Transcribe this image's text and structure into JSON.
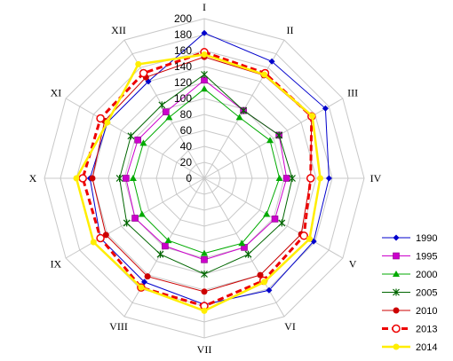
{
  "chart_data": {
    "type": "radar",
    "categories": [
      "I",
      "II",
      "III",
      "IV",
      "V",
      "VI",
      "VII",
      "VIII",
      "IX",
      "X",
      "XI",
      "XII"
    ],
    "rlim": [
      0,
      200
    ],
    "ticks": [
      0,
      20,
      40,
      60,
      80,
      100,
      120,
      140,
      160,
      180,
      200
    ],
    "grid": true,
    "legend_position": "right",
    "series": [
      {
        "name": "1990",
        "color": "#0000cc",
        "marker": "diamond",
        "dashed": false,
        "width": 1,
        "values": [
          182,
          169,
          175,
          156,
          158,
          162,
          158,
          150,
          150,
          143,
          140,
          140
        ]
      },
      {
        "name": "1995",
        "color": "#cc00cc",
        "marker": "square",
        "dashed": false,
        "width": 1,
        "values": [
          123,
          98,
          108,
          103,
          102,
          100,
          102,
          98,
          100,
          98,
          96,
          96
        ]
      },
      {
        "name": "2000",
        "color": "#00aa00",
        "marker": "triangle",
        "dashed": false,
        "width": 1,
        "values": [
          112,
          88,
          95,
          94,
          90,
          94,
          94,
          90,
          90,
          89,
          88,
          88
        ]
      },
      {
        "name": "2005",
        "color": "#006600",
        "marker": "x",
        "dashed": false,
        "width": 1,
        "values": [
          130,
          98,
          108,
          110,
          112,
          110,
          120,
          110,
          112,
          106,
          106,
          106
        ]
      },
      {
        "name": "2010",
        "color": "#cc0000",
        "marker": "circle",
        "dashed": false,
        "width": 1,
        "values": [
          152,
          149,
          155,
          133,
          140,
          140,
          142,
          142,
          142,
          140,
          144,
          146
        ]
      },
      {
        "name": "2013",
        "color": "#ee0000",
        "marker": "circle-open",
        "dashed": true,
        "width": 3,
        "values": [
          158,
          152,
          155,
          133,
          144,
          148,
          160,
          158,
          150,
          152,
          150,
          152
        ]
      },
      {
        "name": "2014",
        "color": "#ffee00",
        "marker": "circle",
        "dashed": false,
        "width": 2.5,
        "values": [
          155,
          150,
          156,
          145,
          152,
          150,
          166,
          158,
          160,
          160,
          140,
          165
        ]
      }
    ]
  }
}
